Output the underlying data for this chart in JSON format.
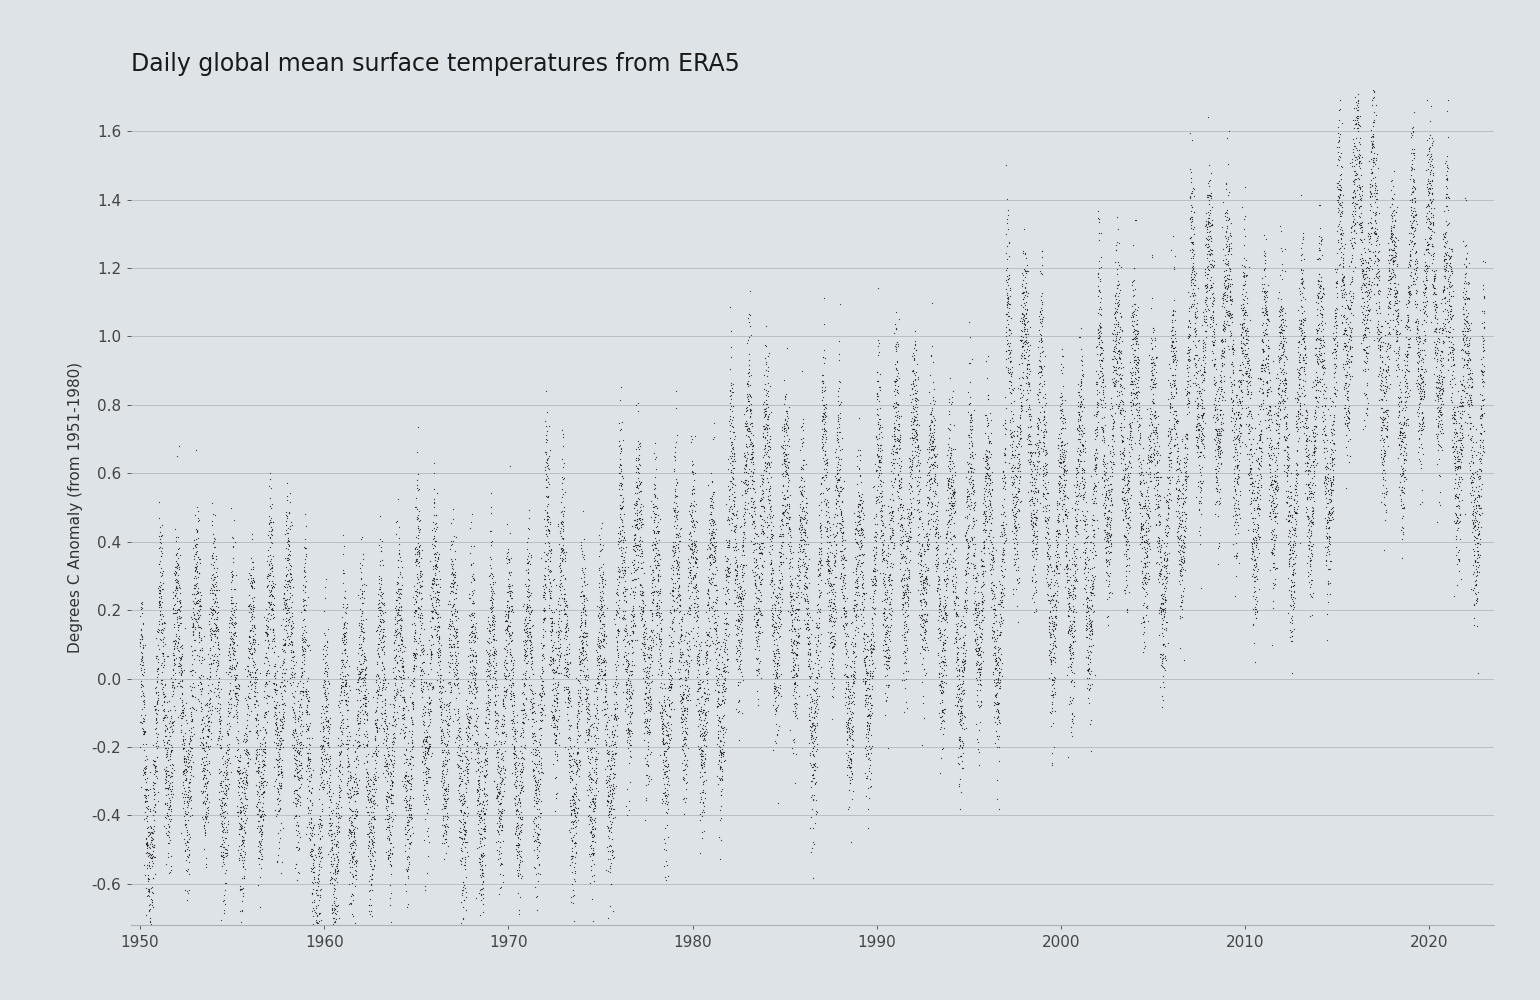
{
  "title": "Daily global mean surface temperatures from ERA5",
  "ylabel": "Degrees C Anomaly (from 1951-1980)",
  "xlim": [
    1949.5,
    2023.5
  ],
  "ylim": [
    -0.72,
    1.72
  ],
  "yticks": [
    -0.6,
    -0.4,
    -0.2,
    0.0,
    0.2,
    0.4,
    0.6,
    0.8,
    1.0,
    1.2,
    1.4,
    1.6
  ],
  "xticks": [
    1950,
    1960,
    1970,
    1980,
    1990,
    2000,
    2010,
    2020
  ],
  "background_color": "#dde3e7",
  "dot_color": "#1a1a1a",
  "dot_size": 0.8,
  "dot_alpha": 0.85,
  "title_fontsize": 17,
  "label_fontsize": 11,
  "tick_fontsize": 11
}
